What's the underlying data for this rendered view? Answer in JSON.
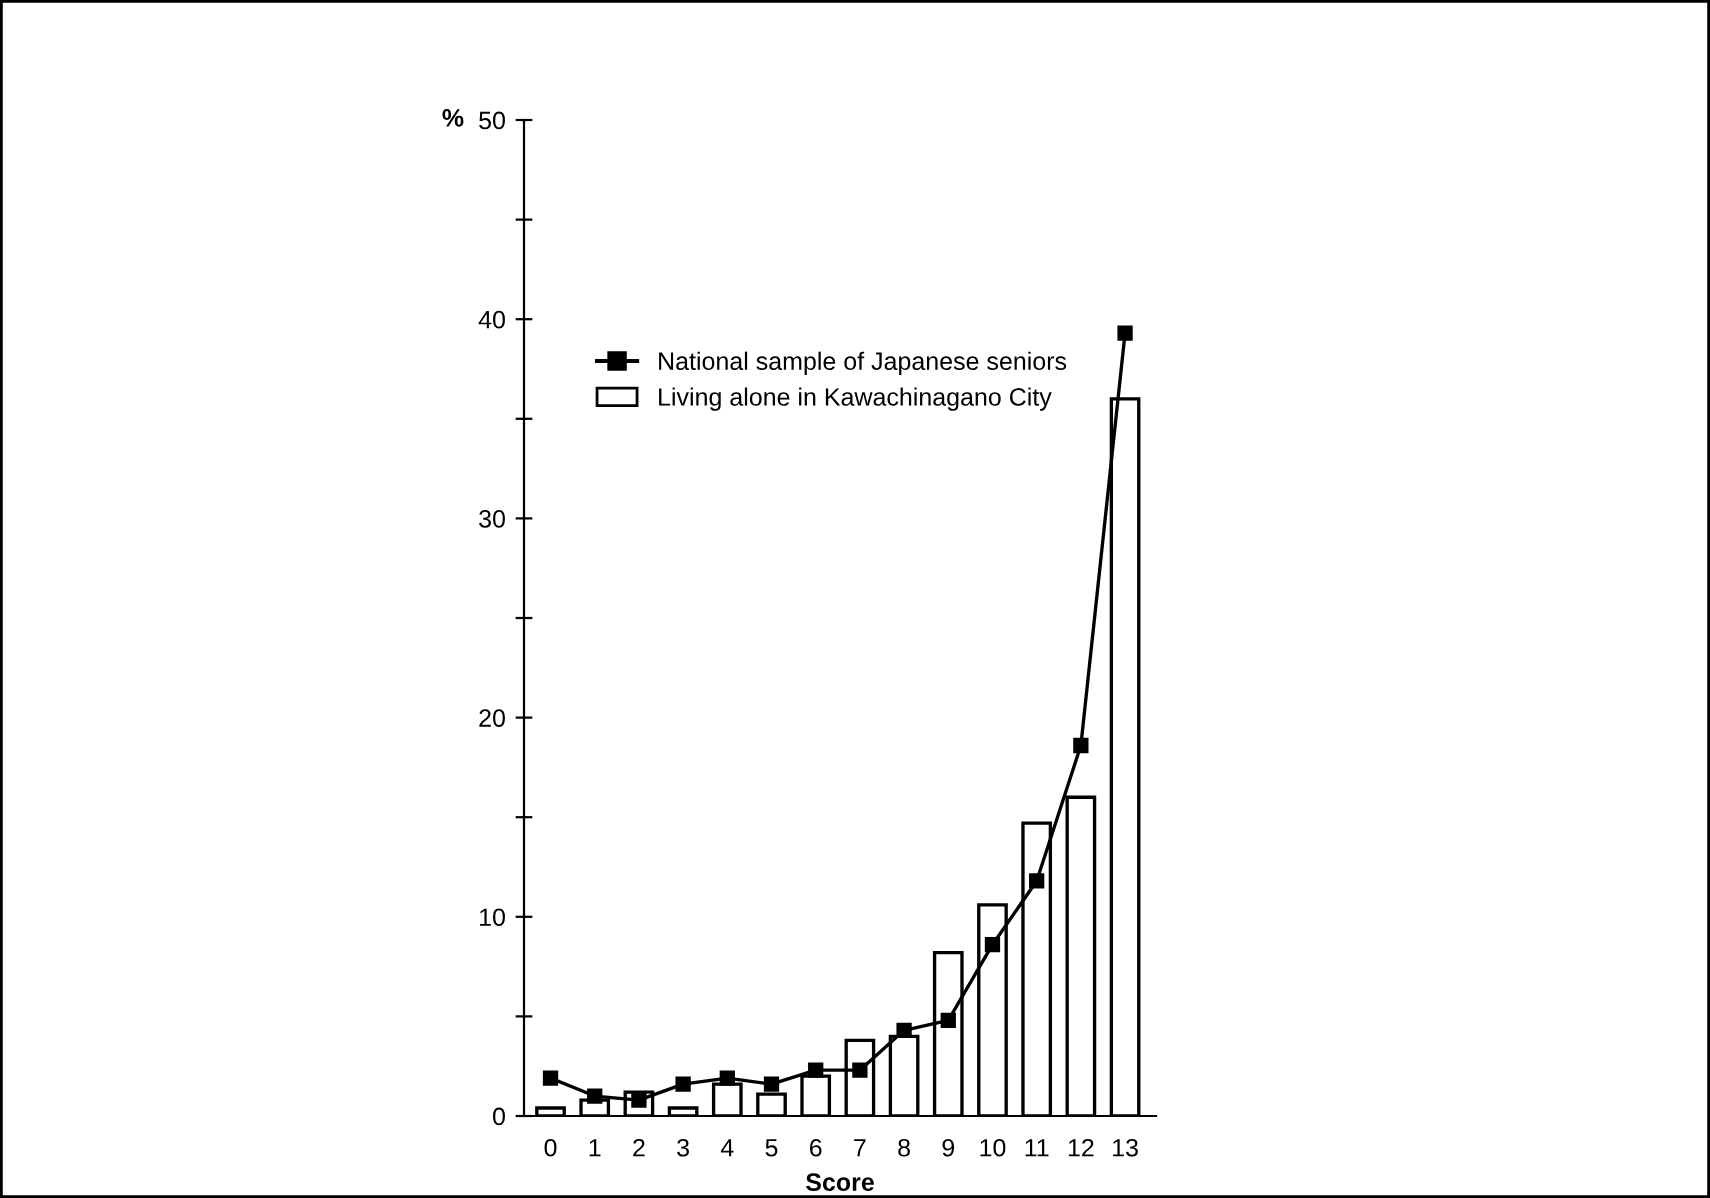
{
  "chart_data": {
    "type": "bar",
    "xlabel": "Score",
    "ylabel": "%",
    "categories": [
      "0",
      "1",
      "2",
      "3",
      "4",
      "5",
      "6",
      "7",
      "8",
      "9",
      "10",
      "11",
      "12",
      "13"
    ],
    "series": [
      {
        "name": "National sample of Japanese seniors",
        "type": "line",
        "color": "#000000",
        "marker": "square",
        "values": [
          1.9,
          1.0,
          0.8,
          1.6,
          1.9,
          1.6,
          2.3,
          2.3,
          4.3,
          4.8,
          8.6,
          11.8,
          18.6,
          39.3
        ]
      },
      {
        "name": "Living alone in Kawachinagano City",
        "color": "#ffffff",
        "values": [
          0.4,
          0.8,
          1.2,
          0.4,
          1.6,
          1.1,
          2.0,
          3.8,
          4.0,
          8.2,
          10.6,
          14.7,
          16.0,
          36.0
        ]
      }
    ],
    "ylim": [
      0,
      50
    ],
    "yticks": [
      0,
      {
        "value": 5,
        "label": null
      },
      10,
      {
        "value": 15,
        "label": null
      },
      20,
      {
        "value": 25,
        "label": null
      },
      30,
      {
        "value": 35,
        "label": null
      },
      40,
      {
        "value": 45,
        "label": null
      },
      50
    ],
    "legend": "top left",
    "grid": false
  }
}
